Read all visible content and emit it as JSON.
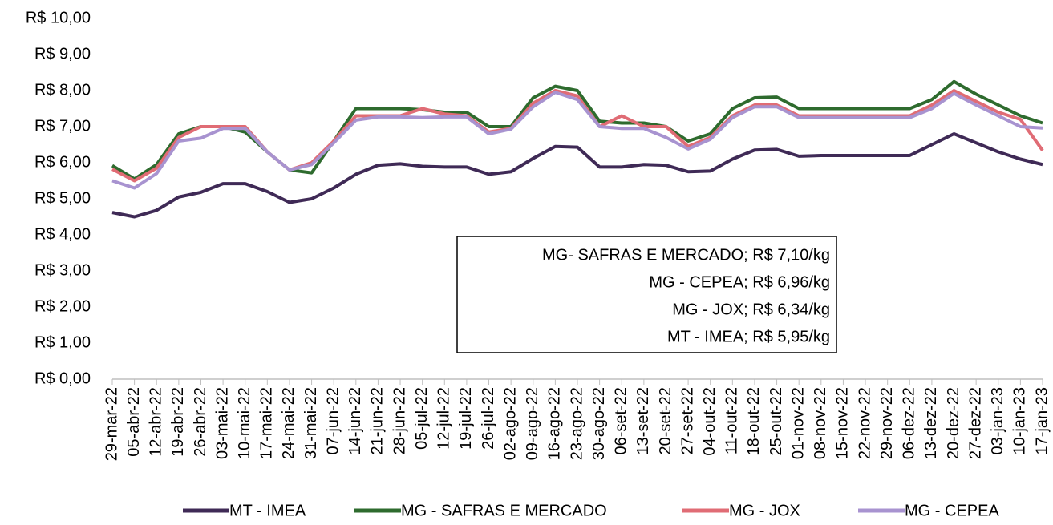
{
  "chart_data": {
    "type": "line",
    "categories": [
      "29-mar-22",
      "05-abr-22",
      "12-abr-22",
      "19-abr-22",
      "26-abr-22",
      "03-mai-22",
      "10-mai-22",
      "17-mai-22",
      "24-mai-22",
      "31-mai-22",
      "07-jun-22",
      "14-jun-22",
      "21-jun-22",
      "28-jun-22",
      "05-jul-22",
      "12-jul-22",
      "19-jul-22",
      "26-jul-22",
      "02-ago-22",
      "09-ago-22",
      "16-ago-22",
      "23-ago-22",
      "30-ago-22",
      "06-set-22",
      "13-set-22",
      "20-set-22",
      "27-set-22",
      "04-out-22",
      "11-out-22",
      "18-out-22",
      "25-out-22",
      "01-nov-22",
      "08-nov-22",
      "15-nov-22",
      "22-nov-22",
      "29-nov-22",
      "06-dez-22",
      "13-dez-22",
      "20-dez-22",
      "27-dez-22",
      "03-jan-23",
      "10-jan-23",
      "17-jan-23"
    ],
    "series": [
      {
        "name": "MT - IMEA",
        "color": "#3f2a56",
        "values": [
          4.62,
          4.5,
          4.68,
          5.05,
          5.18,
          5.42,
          5.42,
          5.2,
          4.9,
          5.0,
          5.3,
          5.68,
          5.93,
          5.97,
          5.9,
          5.88,
          5.88,
          5.68,
          5.75,
          6.12,
          6.45,
          6.43,
          5.88,
          5.88,
          5.95,
          5.93,
          5.75,
          5.77,
          6.1,
          6.35,
          6.37,
          6.18,
          6.2,
          6.2,
          6.2,
          6.2,
          6.2,
          6.5,
          6.8,
          6.55,
          6.3,
          6.1,
          5.95
        ]
      },
      {
        "name": "MG - SAFRAS E MERCADO",
        "color": "#2e6b2e",
        "values": [
          5.92,
          5.55,
          5.95,
          6.8,
          7.0,
          7.0,
          6.85,
          6.3,
          5.8,
          5.72,
          6.6,
          7.5,
          7.5,
          7.5,
          7.47,
          7.4,
          7.4,
          7.0,
          7.0,
          7.8,
          8.12,
          8.0,
          7.15,
          7.1,
          7.1,
          7.0,
          6.6,
          6.8,
          7.5,
          7.8,
          7.82,
          7.5,
          7.5,
          7.5,
          7.5,
          7.5,
          7.5,
          7.75,
          8.25,
          7.9,
          7.6,
          7.3,
          7.1
        ]
      },
      {
        "name": "MG - JOX",
        "color": "#e06c75",
        "values": [
          5.82,
          5.5,
          5.85,
          6.7,
          7.0,
          7.0,
          7.0,
          6.3,
          5.8,
          6.0,
          6.6,
          7.3,
          7.3,
          7.3,
          7.5,
          7.35,
          7.3,
          6.85,
          6.95,
          7.65,
          8.0,
          7.85,
          7.0,
          7.3,
          7.0,
          7.0,
          6.45,
          6.7,
          7.3,
          7.6,
          7.6,
          7.3,
          7.3,
          7.3,
          7.3,
          7.3,
          7.3,
          7.6,
          8.0,
          7.7,
          7.4,
          7.2,
          6.34
        ]
      },
      {
        "name": "MG - CEPEA",
        "color": "#a893d0",
        "values": [
          5.5,
          5.3,
          5.7,
          6.6,
          6.68,
          6.95,
          6.95,
          6.3,
          5.8,
          5.95,
          6.55,
          7.18,
          7.27,
          7.27,
          7.25,
          7.27,
          7.27,
          6.8,
          6.93,
          7.55,
          7.95,
          7.75,
          7.0,
          6.95,
          6.95,
          6.7,
          6.38,
          6.65,
          7.25,
          7.55,
          7.55,
          7.25,
          7.25,
          7.25,
          7.25,
          7.25,
          7.25,
          7.5,
          7.92,
          7.6,
          7.3,
          7.0,
          6.96
        ]
      }
    ],
    "ylim": [
      0,
      10
    ],
    "yticks": [
      {
        "value": 0,
        "label": "R$ 0,00"
      },
      {
        "value": 1,
        "label": "R$ 1,00"
      },
      {
        "value": 2,
        "label": "R$ 2,00"
      },
      {
        "value": 3,
        "label": "R$ 3,00"
      },
      {
        "value": 4,
        "label": "R$ 4,00"
      },
      {
        "value": 5,
        "label": "R$ 5,00"
      },
      {
        "value": 6,
        "label": "R$ 6,00"
      },
      {
        "value": 7,
        "label": "R$ 7,00"
      },
      {
        "value": 8,
        "label": "R$ 8,00"
      },
      {
        "value": 9,
        "label": "R$ 9,00"
      },
      {
        "value": 10,
        "label": "R$ 10,00"
      }
    ],
    "annotations": [
      "MG- SAFRAS E MERCADO; R$ 7,10/kg",
      "MG - CEPEA; R$ 6,96/kg",
      "MG - JOX; R$ 6,34/kg",
      "MT - IMEA; R$ 5,95/kg"
    ],
    "legend": "bottom"
  }
}
